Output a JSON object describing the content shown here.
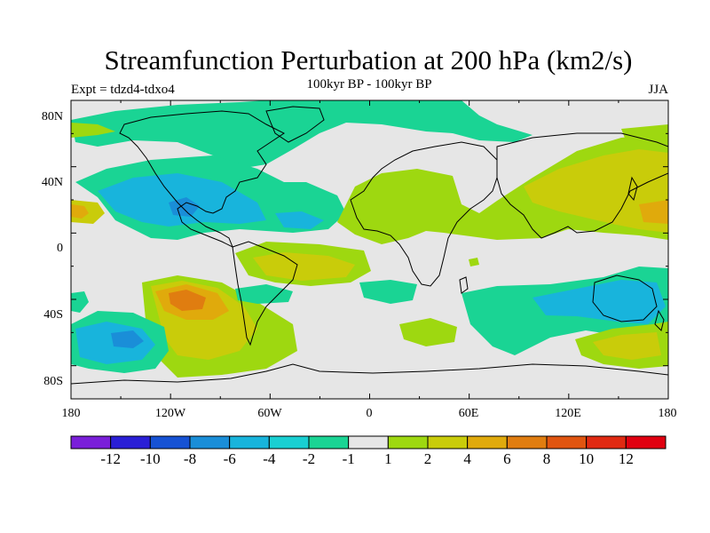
{
  "title": "Streamfunction Perturbation at 200 hPa (km2/s)",
  "subtitle_left": "Expt = tdzd4-tdxo4",
  "subtitle_center": "100kyr BP - 100kyr BP",
  "subtitle_right": "JJA",
  "lat_labels": [
    "80N",
    "40N",
    "0",
    "40S",
    "80S"
  ],
  "lon_labels": [
    "180",
    "120W",
    "60W",
    "0",
    "60E",
    "120E",
    "180"
  ],
  "colorbar": {
    "labels": [
      "-12",
      "-10",
      "-8",
      "-6",
      "-4",
      "-2",
      "-1",
      "1",
      "2",
      "4",
      "6",
      "8",
      "10",
      "12"
    ],
    "colors": [
      "#7a1fd9",
      "#2a1fd6",
      "#1652d4",
      "#1a8ed8",
      "#18b4dc",
      "#19cfd2",
      "#1ad494",
      "#e6e6e6",
      "#9ed810",
      "#c9cc0a",
      "#e0aa0c",
      "#e07d10",
      "#e05510",
      "#e02a12",
      "#e00010"
    ]
  }
}
